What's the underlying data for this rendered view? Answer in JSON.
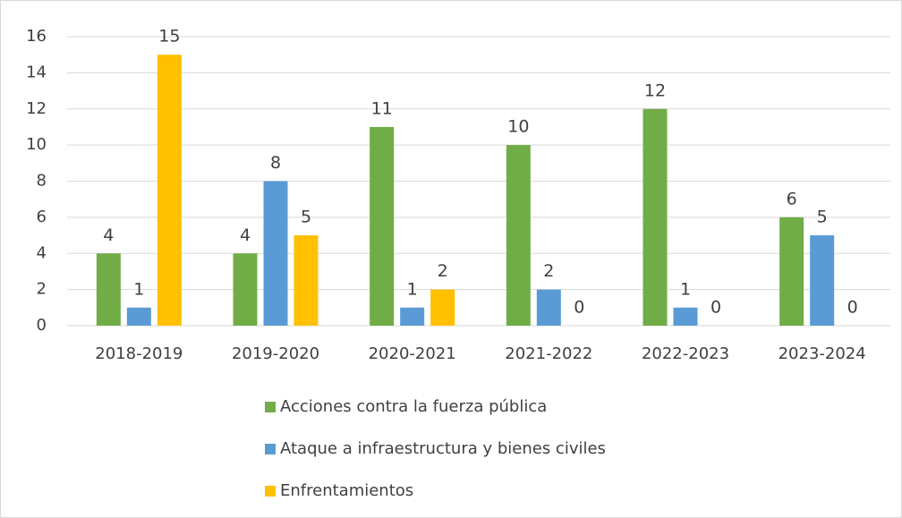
{
  "chart_data": {
    "type": "bar",
    "categories": [
      "2018-2019",
      "2019-2020",
      "2020-2021",
      "2021-2022",
      "2022-2023",
      "2023-2024"
    ],
    "series": [
      {
        "name": "Acciones contra la fuerza pública",
        "color": "#70ad47",
        "values": [
          4,
          4,
          11,
          10,
          12,
          6
        ]
      },
      {
        "name": "Ataque a infraestructura y bienes civiles",
        "color": "#5b9bd5",
        "values": [
          1,
          8,
          1,
          2,
          1,
          5
        ]
      },
      {
        "name": "Enfrentamientos",
        "color": "#ffc000",
        "values": [
          15,
          5,
          2,
          0,
          0,
          0
        ]
      }
    ],
    "ylim": [
      0,
      16
    ],
    "yticks": [
      0,
      2,
      4,
      6,
      8,
      10,
      12,
      14,
      16
    ],
    "grid": true,
    "data_labels": true,
    "legend": "bottom"
  }
}
